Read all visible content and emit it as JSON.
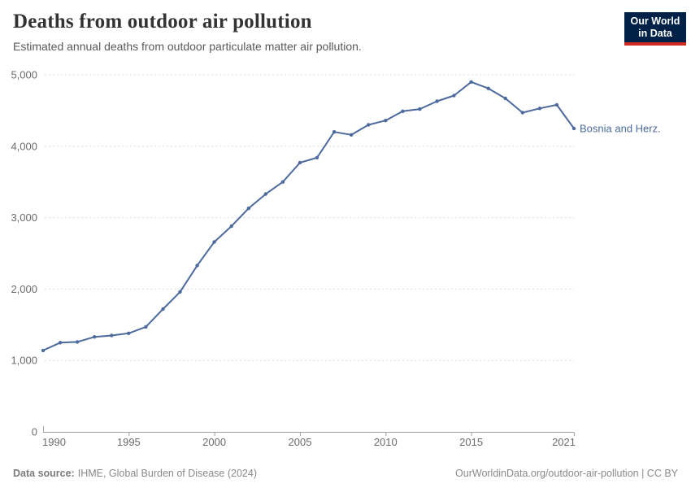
{
  "header": {
    "title": "Deaths from outdoor air pollution",
    "subtitle": "Estimated annual deaths from outdoor particulate matter air pollution.",
    "logo": {
      "line1": "Our World",
      "line2": "in Data"
    }
  },
  "chart_data": {
    "type": "line",
    "title": "Deaths from outdoor air pollution",
    "xlabel": "",
    "ylabel": "",
    "xlim": [
      1990,
      2021
    ],
    "ylim": [
      0,
      5000
    ],
    "grid": "horizontal-dashed",
    "legend_position": "end-of-line-label",
    "x_ticks": [
      1990,
      1995,
      2000,
      2005,
      2010,
      2015,
      2021
    ],
    "x_tick_labels": [
      "1990",
      "1995",
      "2000",
      "2005",
      "2010",
      "2015",
      "2021"
    ],
    "y_ticks": [
      0,
      1000,
      2000,
      3000,
      4000,
      5000
    ],
    "y_tick_labels": [
      "0",
      "1,000",
      "2,000",
      "3,000",
      "4,000",
      "5,000"
    ],
    "series": [
      {
        "name": "Bosnia and Herz.",
        "x": [
          1990,
          1991,
          1992,
          1993,
          1994,
          1995,
          1996,
          1997,
          1998,
          1999,
          2000,
          2001,
          2002,
          2003,
          2004,
          2005,
          2006,
          2007,
          2008,
          2009,
          2010,
          2011,
          2012,
          2013,
          2014,
          2015,
          2016,
          2017,
          2018,
          2019,
          2020,
          2021
        ],
        "values": [
          1140,
          1250,
          1260,
          1330,
          1350,
          1380,
          1470,
          1720,
          1960,
          2330,
          2660,
          2880,
          3130,
          3330,
          3500,
          3770,
          3840,
          4200,
          4160,
          4300,
          4360,
          4490,
          4520,
          4630,
          4710,
          4900,
          4810,
          4670,
          4470,
          4530,
          4580,
          4250
        ]
      }
    ]
  },
  "colors": {
    "line": "#4C6A9C",
    "series_label": "#4C6A9C",
    "gridline": "#dcdcdc",
    "axis": "#a1a1a1",
    "tick_label": "#6b6b6b",
    "title": "#333333",
    "subtitle": "#595959",
    "footer": "#8a8a8a",
    "logo_bg": "#002147",
    "logo_red": "#cf2b21"
  },
  "footer": {
    "source_label": "Data source:",
    "source_text": "IHME, Global Burden of Disease (2024)",
    "right_text": "OurWorldinData.org/outdoor-air-pollution | CC BY"
  }
}
